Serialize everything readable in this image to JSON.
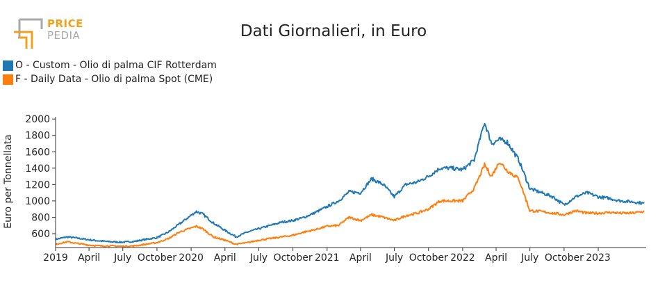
{
  "logo": {
    "line1": "PRICE",
    "line2": "PEDIA",
    "orange": "#f0a21c",
    "gray": "#a8a8a8"
  },
  "chart_data": {
    "type": "line",
    "title": "Dati Giornalieri, in Euro",
    "xlabel": "",
    "ylabel": "Euro per Tonnellata",
    "ylim": [
      430,
      2010
    ],
    "xlim": [
      "2019-01-01",
      "2023-05-10"
    ],
    "grid": false,
    "legend_position": "top-left",
    "yticks": [
      600,
      800,
      1000,
      1200,
      1400,
      1600,
      1800,
      2000
    ],
    "xticks": [
      {
        "date": "2019-01-01",
        "label": "2019"
      },
      {
        "date": "2019-04-01",
        "label": "April"
      },
      {
        "date": "2019-07-01",
        "label": "July"
      },
      {
        "date": "2019-10-01",
        "label": "October"
      },
      {
        "date": "2020-01-01",
        "label": "2020"
      },
      {
        "date": "2020-04-01",
        "label": "April"
      },
      {
        "date": "2020-07-01",
        "label": "July"
      },
      {
        "date": "2020-10-01",
        "label": "October"
      },
      {
        "date": "2021-01-01",
        "label": "2021"
      },
      {
        "date": "2021-04-01",
        "label": "April"
      },
      {
        "date": "2021-07-01",
        "label": "July"
      },
      {
        "date": "2021-10-01",
        "label": "October"
      },
      {
        "date": "2022-01-01",
        "label": "2022"
      },
      {
        "date": "2022-04-01",
        "label": "April"
      },
      {
        "date": "2022-07-01",
        "label": "July"
      },
      {
        "date": "2022-10-01",
        "label": "October"
      },
      {
        "date": "2023-01-01",
        "label": "2023"
      }
    ],
    "series": [
      {
        "name": "O - Custom - Olio di palma CIF Rotterdam",
        "color": "#1f77b4",
        "points": [
          [
            "2019-01-01",
            530
          ],
          [
            "2019-02-01",
            560
          ],
          [
            "2019-03-01",
            545
          ],
          [
            "2019-04-01",
            525
          ],
          [
            "2019-05-01",
            510
          ],
          [
            "2019-06-01",
            500
          ],
          [
            "2019-07-01",
            495
          ],
          [
            "2019-08-01",
            505
          ],
          [
            "2019-09-01",
            530
          ],
          [
            "2019-10-01",
            550
          ],
          [
            "2019-11-01",
            620
          ],
          [
            "2019-12-01",
            720
          ],
          [
            "2020-01-15",
            870
          ],
          [
            "2020-02-01",
            840
          ],
          [
            "2020-03-01",
            730
          ],
          [
            "2020-04-01",
            640
          ],
          [
            "2020-05-01",
            560
          ],
          [
            "2020-06-01",
            620
          ],
          [
            "2020-07-01",
            660
          ],
          [
            "2020-08-01",
            700
          ],
          [
            "2020-09-01",
            740
          ],
          [
            "2020-10-01",
            760
          ],
          [
            "2020-11-01",
            800
          ],
          [
            "2020-12-01",
            860
          ],
          [
            "2021-01-01",
            930
          ],
          [
            "2021-02-01",
            1000
          ],
          [
            "2021-03-01",
            1110
          ],
          [
            "2021-04-01",
            1100
          ],
          [
            "2021-05-01",
            1270
          ],
          [
            "2021-06-01",
            1200
          ],
          [
            "2021-07-01",
            1050
          ],
          [
            "2021-08-01",
            1200
          ],
          [
            "2021-09-01",
            1230
          ],
          [
            "2021-10-01",
            1300
          ],
          [
            "2021-11-01",
            1400
          ],
          [
            "2021-12-01",
            1400
          ],
          [
            "2022-01-01",
            1380
          ],
          [
            "2022-02-01",
            1500
          ],
          [
            "2022-03-01",
            1960
          ],
          [
            "2022-03-20",
            1700
          ],
          [
            "2022-04-10",
            1750
          ],
          [
            "2022-05-01",
            1720
          ],
          [
            "2022-06-01",
            1500
          ],
          [
            "2022-07-01",
            1150
          ],
          [
            "2022-08-01",
            1100
          ],
          [
            "2022-09-01",
            1050
          ],
          [
            "2022-10-01",
            950
          ],
          [
            "2022-11-01",
            1050
          ],
          [
            "2022-12-01",
            1100
          ],
          [
            "2023-01-01",
            1050
          ],
          [
            "2023-02-01",
            1030
          ],
          [
            "2023-03-01",
            1000
          ],
          [
            "2023-04-01",
            990
          ],
          [
            "2023-05-05",
            970
          ]
        ]
      },
      {
        "name": "F - Daily Data - Olio di palma Spot (CME)",
        "color": "#ff7f0e",
        "points": [
          [
            "2019-01-01",
            470
          ],
          [
            "2019-02-01",
            500
          ],
          [
            "2019-03-01",
            480
          ],
          [
            "2019-04-01",
            460
          ],
          [
            "2019-05-01",
            450
          ],
          [
            "2019-06-01",
            450
          ],
          [
            "2019-07-01",
            445
          ],
          [
            "2019-08-01",
            450
          ],
          [
            "2019-09-01",
            470
          ],
          [
            "2019-10-01",
            490
          ],
          [
            "2019-11-01",
            540
          ],
          [
            "2019-12-01",
            620
          ],
          [
            "2020-01-15",
            690
          ],
          [
            "2020-02-01",
            660
          ],
          [
            "2020-03-01",
            560
          ],
          [
            "2020-04-01",
            520
          ],
          [
            "2020-05-01",
            470
          ],
          [
            "2020-06-01",
            490
          ],
          [
            "2020-07-01",
            520
          ],
          [
            "2020-08-01",
            540
          ],
          [
            "2020-09-01",
            560
          ],
          [
            "2020-10-01",
            580
          ],
          [
            "2020-11-01",
            620
          ],
          [
            "2020-12-01",
            650
          ],
          [
            "2021-01-01",
            690
          ],
          [
            "2021-02-01",
            700
          ],
          [
            "2021-03-01",
            800
          ],
          [
            "2021-04-01",
            760
          ],
          [
            "2021-05-01",
            830
          ],
          [
            "2021-06-01",
            800
          ],
          [
            "2021-07-01",
            760
          ],
          [
            "2021-08-01",
            820
          ],
          [
            "2021-09-01",
            850
          ],
          [
            "2021-10-01",
            900
          ],
          [
            "2021-11-01",
            1000
          ],
          [
            "2021-12-01",
            1000
          ],
          [
            "2022-01-01",
            1000
          ],
          [
            "2022-02-01",
            1150
          ],
          [
            "2022-03-01",
            1440
          ],
          [
            "2022-03-20",
            1300
          ],
          [
            "2022-04-10",
            1480
          ],
          [
            "2022-05-01",
            1370
          ],
          [
            "2022-06-01",
            1270
          ],
          [
            "2022-07-01",
            880
          ],
          [
            "2022-08-01",
            870
          ],
          [
            "2022-09-01",
            850
          ],
          [
            "2022-10-01",
            830
          ],
          [
            "2022-11-01",
            880
          ],
          [
            "2022-12-01",
            850
          ],
          [
            "2023-01-01",
            850
          ],
          [
            "2023-02-01",
            860
          ],
          [
            "2023-03-01",
            850
          ],
          [
            "2023-04-01",
            850
          ],
          [
            "2023-05-05",
            870
          ]
        ]
      }
    ]
  }
}
